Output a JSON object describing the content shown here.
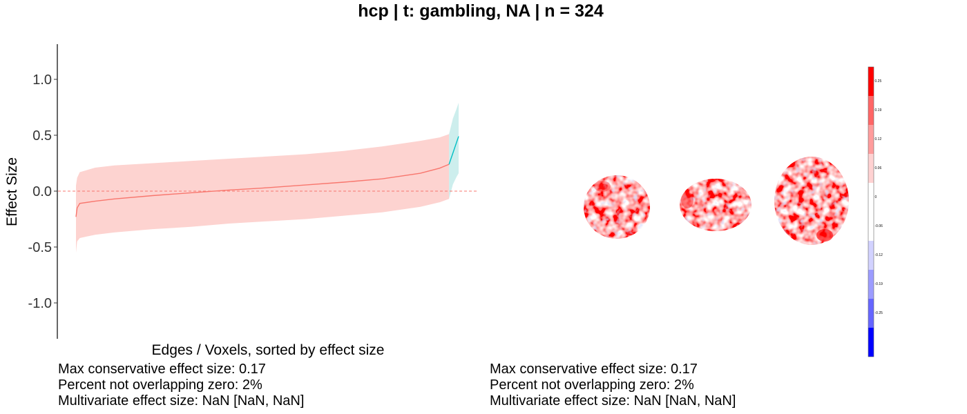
{
  "title": "hcp | t: gambling, NA | n = 324",
  "chart_data": {
    "type": "line",
    "title": "hcp | t: gambling, NA | n = 324",
    "xlabel": "Edges / Voxels, sorted by effect size",
    "ylabel": "Effect Size",
    "ylim": [
      -1.3,
      1.3
    ],
    "xlim": [
      0,
      1
    ],
    "yticks": [
      1.0,
      0.5,
      0.0,
      -0.5,
      -1.0
    ],
    "ytick_labels": [
      "1.0",
      "0.5",
      "0.0",
      "-0.5",
      "-1.0"
    ],
    "reference_line": {
      "y": 0,
      "style": "dashed"
    },
    "series": [
      {
        "color": "#f8766d",
        "fill": "#fdd3d0",
        "points": [
          [
            0.0,
            -0.23,
            -0.55,
            0.05
          ],
          [
            0.003,
            -0.15,
            -0.45,
            0.12
          ],
          [
            0.01,
            -0.11,
            -0.42,
            0.17
          ],
          [
            0.05,
            -0.09,
            -0.39,
            0.21
          ],
          [
            0.1,
            -0.07,
            -0.37,
            0.23
          ],
          [
            0.2,
            -0.04,
            -0.34,
            0.25
          ],
          [
            0.3,
            -0.015,
            -0.32,
            0.27
          ],
          [
            0.4,
            0.01,
            -0.29,
            0.29
          ],
          [
            0.5,
            0.03,
            -0.27,
            0.31
          ],
          [
            0.6,
            0.055,
            -0.25,
            0.33
          ],
          [
            0.7,
            0.08,
            -0.22,
            0.36
          ],
          [
            0.8,
            0.11,
            -0.19,
            0.4
          ],
          [
            0.9,
            0.16,
            -0.14,
            0.45
          ],
          [
            0.95,
            0.205,
            -0.1,
            0.48
          ],
          [
            0.975,
            0.24,
            -0.07,
            0.51
          ]
        ]
      },
      {
        "color": "#00bfc4",
        "fill": "#cdeeed",
        "points": [
          [
            0.975,
            0.24,
            -0.07,
            0.51
          ],
          [
            0.985,
            0.34,
            0.06,
            0.65
          ],
          [
            0.995,
            0.44,
            0.13,
            0.74
          ],
          [
            1.0,
            0.49,
            0.16,
            0.79
          ]
        ]
      }
    ]
  },
  "stats_left": [
    "Max conservative effect size: 0.17",
    "Percent not overlapping zero: 2%",
    "Multivariate effect size: NaN [NaN, NaN]"
  ],
  "stats_right": [
    "Max conservative effect size: 0.17",
    "Percent not overlapping zero: 2%",
    "Multivariate effect size: NaN [NaN, NaN]"
  ],
  "colorbar": {
    "labels": [
      "0.25",
      "0.19",
      "0.12",
      "0.06",
      "0",
      "-0.06",
      "-0.12",
      "-0.19",
      "-0.25"
    ],
    "colors": [
      "#ff0000",
      "#ff6666",
      "#ff9c9c",
      "#ffd2d2",
      "#ffffff",
      "#ffffff",
      "#d2d2ff",
      "#9c9cff",
      "#6666ff",
      "#0000ff"
    ]
  },
  "colors": {
    "negative_series": "#f8766d",
    "positive_series": "#00bfc4",
    "zero_line": "#f8766d"
  }
}
